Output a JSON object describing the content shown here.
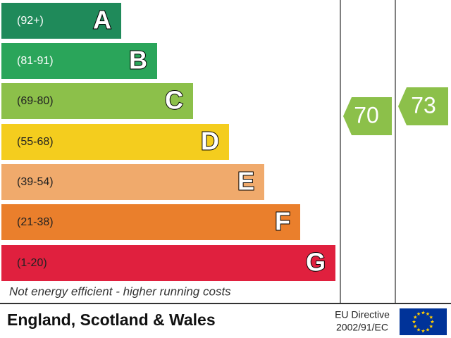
{
  "bands": [
    {
      "range": "(92+)",
      "letter": "A"
    },
    {
      "range": "(81-91)",
      "letter": "B"
    },
    {
      "range": "(69-80)",
      "letter": "C"
    },
    {
      "range": "(55-68)",
      "letter": "D"
    },
    {
      "range": "(39-54)",
      "letter": "E"
    },
    {
      "range": "(21-38)",
      "letter": "F"
    },
    {
      "range": "(1-20)",
      "letter": "G"
    }
  ],
  "current": 70,
  "potential": 73,
  "note": "Not energy efficient - higher running costs",
  "footer": {
    "region": "England, Scotland & Wales",
    "directive": [
      "EU Directive",
      "2002/91/EC"
    ]
  }
}
